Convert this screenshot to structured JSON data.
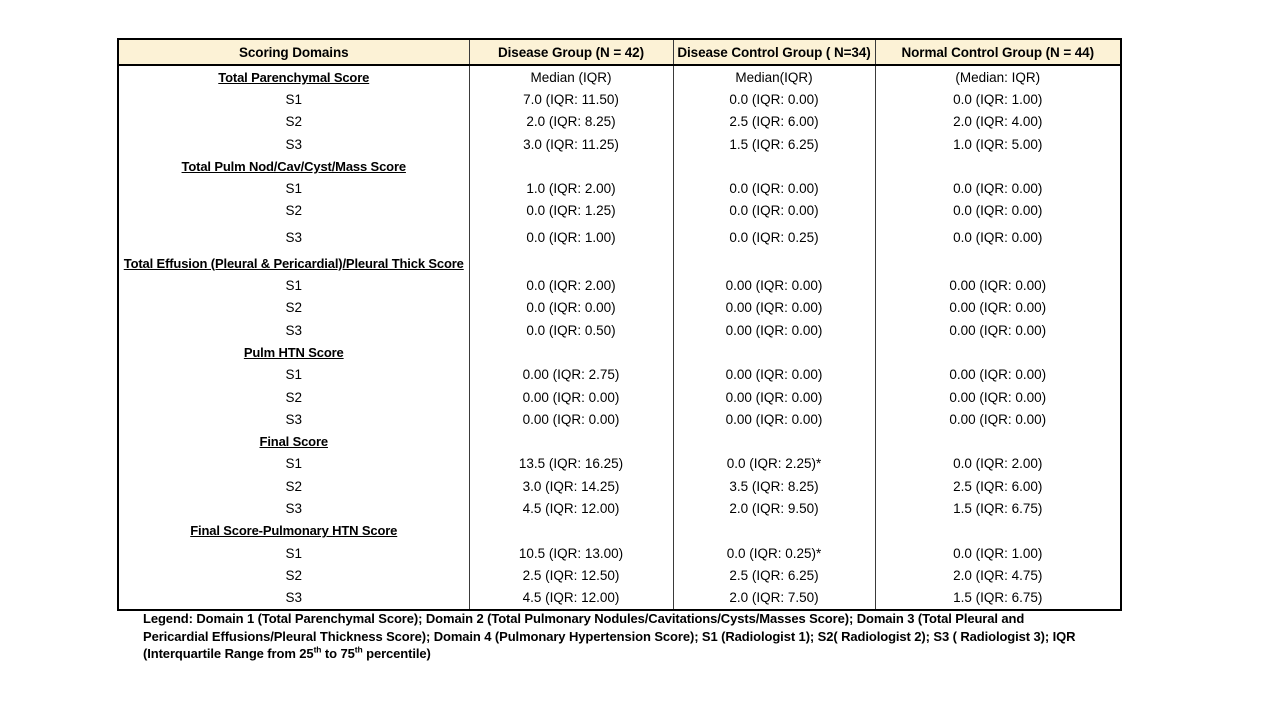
{
  "table": {
    "header_bg": "#fcf2d6",
    "border_color": "#000000",
    "columns": [
      "Scoring Domains",
      "Disease Group (N = 42)",
      "Disease Control Group ( N=34)",
      "Normal Control Group (N = 44)"
    ],
    "sections": [
      {
        "title": "Total Parenchymal Score",
        "median_labels": [
          "Median (IQR)",
          "Median(IQR)",
          "(Median: IQR)"
        ],
        "rows": [
          {
            "label": "S1",
            "values": [
              "7.0 (IQR: 11.50)",
              "0.0 (IQR: 0.00)",
              "0.0 (IQR: 1.00)"
            ]
          },
          {
            "label": "S2",
            "values": [
              "2.0 (IQR: 8.25)",
              "2.5 (IQR: 6.00)",
              "2.0 (IQR: 4.00)"
            ]
          },
          {
            "label": "S3",
            "values": [
              "3.0 (IQR: 11.25)",
              "1.5 (IQR: 6.25)",
              "1.0 (IQR: 5.00)"
            ]
          }
        ]
      },
      {
        "title": "Total Pulm Nod/Cav/Cyst/Mass Score",
        "median_labels": [
          "",
          "",
          ""
        ],
        "rows": [
          {
            "label": "S1",
            "values": [
              "1.0 (IQR: 2.00)",
              "0.0 (IQR: 0.00)",
              "0.0 (IQR: 0.00)"
            ]
          },
          {
            "label": "S2",
            "values": [
              "0.0 (IQR: 1.25)",
              "0.0 (IQR: 0.00)",
              "0.0 (IQR: 0.00)"
            ]
          },
          {
            "label": "S3",
            "values": [
              "0.0 (IQR: 1.00)",
              "0.0 (IQR: 0.25)",
              "0.0 (IQR: 0.00)"
            ],
            "tall": true
          }
        ]
      },
      {
        "title": "Total Effusion (Pleural & Pericardial)/Pleural Thick Score",
        "median_labels": [
          "",
          "",
          ""
        ],
        "rows": [
          {
            "label": "S1",
            "values": [
              "0.0 (IQR: 2.00)",
              "0.00 (IQR: 0.00)",
              "0.00 (IQR: 0.00)"
            ]
          },
          {
            "label": "S2",
            "values": [
              "0.0 (IQR: 0.00)",
              "0.00 (IQR: 0.00)",
              "0.00 (IQR: 0.00)"
            ]
          },
          {
            "label": "S3",
            "values": [
              "0.0 (IQR: 0.50)",
              "0.00 (IQR: 0.00)",
              "0.00 (IQR: 0.00)"
            ]
          }
        ]
      },
      {
        "title": "Pulm HTN Score",
        "median_labels": [
          "",
          "",
          ""
        ],
        "rows": [
          {
            "label": "S1",
            "values": [
              "0.00 (IQR: 2.75)",
              "0.00 (IQR: 0.00)",
              "0.00 (IQR: 0.00)"
            ]
          },
          {
            "label": "S2",
            "values": [
              "0.00 (IQR: 0.00)",
              "0.00 (IQR: 0.00)",
              "0.00 (IQR: 0.00)"
            ]
          },
          {
            "label": "S3",
            "values": [
              "0.00 (IQR: 0.00)",
              "0.00 (IQR: 0.00)",
              "0.00 (IQR: 0.00)"
            ]
          }
        ]
      },
      {
        "title": "Final Score",
        "median_labels": [
          "",
          "",
          ""
        ],
        "rows": [
          {
            "label": "S1",
            "values": [
              "13.5 (IQR: 16.25)",
              "0.0 (IQR: 2.25)*",
              "0.0 (IQR: 2.00)"
            ]
          },
          {
            "label": "S2",
            "values": [
              "3.0 (IQR: 14.25)",
              "3.5 (IQR: 8.25)",
              "2.5 (IQR: 6.00)"
            ]
          },
          {
            "label": "S3",
            "values": [
              "4.5 (IQR: 12.00)",
              "2.0 (IQR: 9.50)",
              "1.5 (IQR: 6.75)"
            ]
          }
        ]
      },
      {
        "title": "Final Score-Pulmonary HTN Score",
        "median_labels": [
          "",
          "",
          ""
        ],
        "rows": [
          {
            "label": "S1",
            "values": [
              "10.5 (IQR: 13.00)",
              "0.0 (IQR: 0.25)*",
              "0.0 (IQR: 1.00)"
            ]
          },
          {
            "label": "S2",
            "values": [
              "2.5 (IQR: 12.50)",
              "2.5 (IQR: 6.25)",
              "2.0 (IQR: 4.75)"
            ]
          },
          {
            "label": "S3",
            "values": [
              "4.5 (IQR: 12.00)",
              "2.0 (IQR: 7.50)",
              "1.5 (IQR: 6.75)"
            ]
          }
        ]
      }
    ]
  },
  "legend": {
    "lines": [
      [
        {
          "text": "Legend: Domain 1 (Total Parenchymal Score); Domain 2 (Total Pulmonary Nodules/Cavitations/Cysts/Masses Score); Domain 3 (Total Pleural and"
        }
      ],
      [
        {
          "text": "Pericardial Effusions/Pleural Thickness Score); Domain 4 (Pulmonary Hypertension Score); S1 (Radiologist 1); S2( Radiologist 2); S3 ( Radiologist 3); IQR"
        }
      ],
      [
        {
          "text": "(Interquartile Range from 25"
        },
        {
          "text": "th",
          "sup": true
        },
        {
          "text": " to 75"
        },
        {
          "text": "th",
          "sup": true
        },
        {
          "text": " percentile)"
        }
      ]
    ]
  }
}
